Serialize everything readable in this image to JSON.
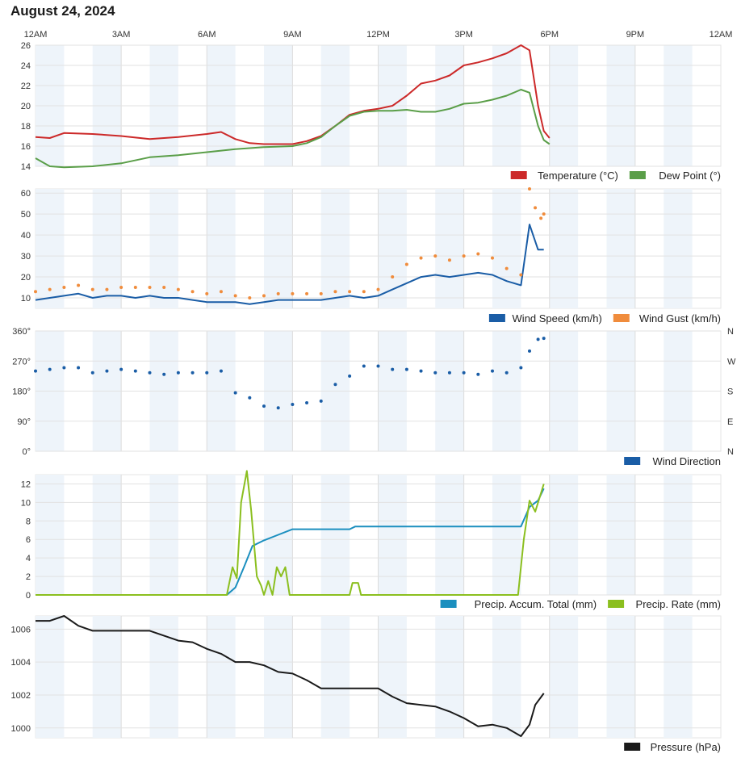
{
  "page": {
    "title": "August 24, 2024"
  },
  "time_axis": {
    "labels": [
      "12AM",
      "3AM",
      "6AM",
      "9AM",
      "12PM",
      "3PM",
      "6PM",
      "9PM",
      "12AM"
    ],
    "hours": [
      0,
      3,
      6,
      9,
      12,
      15,
      18,
      21,
      24
    ]
  },
  "chart_data": [
    {
      "type": "line",
      "xunit": "hours since midnight",
      "ylim": [
        14,
        26
      ],
      "yticks": [
        14,
        16,
        18,
        20,
        22,
        24,
        26
      ],
      "legend_position": "bottom-right",
      "series": [
        {
          "name": "Temperature (°C)",
          "color": "#cc2929",
          "points": [
            [
              0,
              16.9
            ],
            [
              0.5,
              16.8
            ],
            [
              1,
              17.3
            ],
            [
              2,
              17.2
            ],
            [
              3,
              17.0
            ],
            [
              4,
              16.7
            ],
            [
              5,
              16.9
            ],
            [
              6,
              17.2
            ],
            [
              6.5,
              17.4
            ],
            [
              7,
              16.7
            ],
            [
              7.5,
              16.3
            ],
            [
              8,
              16.2
            ],
            [
              9,
              16.2
            ],
            [
              9.5,
              16.5
            ],
            [
              10,
              17.0
            ],
            [
              10.5,
              18.0
            ],
            [
              11,
              19.1
            ],
            [
              11.5,
              19.5
            ],
            [
              12,
              19.7
            ],
            [
              12.5,
              20.0
            ],
            [
              13,
              21.0
            ],
            [
              13.5,
              22.2
            ],
            [
              14,
              22.5
            ],
            [
              14.5,
              23.0
            ],
            [
              15,
              24.0
            ],
            [
              15.5,
              24.3
            ],
            [
              16,
              24.7
            ],
            [
              16.5,
              25.2
            ],
            [
              17,
              26.0
            ],
            [
              17.3,
              25.5
            ],
            [
              17.6,
              20.0
            ],
            [
              17.8,
              17.5
            ],
            [
              18,
              16.8
            ]
          ]
        },
        {
          "name": "Dew Point (°)",
          "color": "#5a9e48",
          "points": [
            [
              0,
              14.8
            ],
            [
              0.5,
              14.0
            ],
            [
              1,
              13.9
            ],
            [
              2,
              14.0
            ],
            [
              3,
              14.3
            ],
            [
              4,
              14.9
            ],
            [
              5,
              15.1
            ],
            [
              6,
              15.4
            ],
            [
              7,
              15.7
            ],
            [
              8,
              15.9
            ],
            [
              9,
              16.0
            ],
            [
              9.5,
              16.3
            ],
            [
              10,
              16.9
            ],
            [
              10.5,
              18.0
            ],
            [
              11,
              19.0
            ],
            [
              11.5,
              19.4
            ],
            [
              12,
              19.5
            ],
            [
              12.5,
              19.5
            ],
            [
              13,
              19.6
            ],
            [
              13.5,
              19.4
            ],
            [
              14,
              19.4
            ],
            [
              14.5,
              19.7
            ],
            [
              15,
              20.2
            ],
            [
              15.5,
              20.3
            ],
            [
              16,
              20.6
            ],
            [
              16.5,
              21.0
            ],
            [
              17,
              21.6
            ],
            [
              17.3,
              21.3
            ],
            [
              17.6,
              18.0
            ],
            [
              17.8,
              16.6
            ],
            [
              18,
              16.2
            ]
          ]
        }
      ]
    },
    {
      "type": "line+scatter",
      "xunit": "hours since midnight",
      "ylim": [
        5,
        62
      ],
      "yticks": [
        10,
        20,
        30,
        40,
        50,
        60
      ],
      "legend_position": "bottom-right",
      "series": [
        {
          "name": "Wind Speed (km/h)",
          "color": "#1a5da6",
          "kind": "line",
          "points": [
            [
              0,
              9
            ],
            [
              0.5,
              10
            ],
            [
              1,
              11
            ],
            [
              1.5,
              12
            ],
            [
              2,
              10
            ],
            [
              2.5,
              11
            ],
            [
              3,
              11
            ],
            [
              3.5,
              10
            ],
            [
              4,
              11
            ],
            [
              4.5,
              10
            ],
            [
              5,
              10
            ],
            [
              5.5,
              9
            ],
            [
              6,
              8
            ],
            [
              6.5,
              8
            ],
            [
              7,
              8
            ],
            [
              7.5,
              7
            ],
            [
              8,
              8
            ],
            [
              8.5,
              9
            ],
            [
              9,
              9
            ],
            [
              9.5,
              9
            ],
            [
              10,
              9
            ],
            [
              10.5,
              10
            ],
            [
              11,
              11
            ],
            [
              11.5,
              10
            ],
            [
              12,
              11
            ],
            [
              12.5,
              14
            ],
            [
              13,
              17
            ],
            [
              13.5,
              20
            ],
            [
              14,
              21
            ],
            [
              14.5,
              20
            ],
            [
              15,
              21
            ],
            [
              15.5,
              22
            ],
            [
              16,
              21
            ],
            [
              16.5,
              18
            ],
            [
              17,
              16
            ],
            [
              17.3,
              45
            ],
            [
              17.6,
              33
            ],
            [
              17.8,
              33
            ]
          ]
        },
        {
          "name": "Wind Gust (km/h)",
          "color": "#f08c3c",
          "kind": "dots",
          "points": [
            [
              0,
              13
            ],
            [
              0.5,
              14
            ],
            [
              1,
              15
            ],
            [
              1.5,
              16
            ],
            [
              2,
              14
            ],
            [
              2.5,
              14
            ],
            [
              3,
              15
            ],
            [
              3.5,
              15
            ],
            [
              4,
              15
            ],
            [
              4.5,
              15
            ],
            [
              5,
              14
            ],
            [
              5.5,
              13
            ],
            [
              6,
              12
            ],
            [
              6.5,
              13
            ],
            [
              7,
              11
            ],
            [
              7.5,
              10
            ],
            [
              8,
              11
            ],
            [
              8.5,
              12
            ],
            [
              9,
              12
            ],
            [
              9.5,
              12
            ],
            [
              10,
              12
            ],
            [
              10.5,
              13
            ],
            [
              11,
              13
            ],
            [
              11.5,
              13
            ],
            [
              12,
              14
            ],
            [
              12.5,
              20
            ],
            [
              13,
              26
            ],
            [
              13.5,
              29
            ],
            [
              14,
              30
            ],
            [
              14.5,
              28
            ],
            [
              15,
              30
            ],
            [
              15.5,
              31
            ],
            [
              16,
              29
            ],
            [
              16.5,
              24
            ],
            [
              17,
              21
            ],
            [
              17.3,
              62
            ],
            [
              17.5,
              53
            ],
            [
              17.7,
              48
            ],
            [
              17.8,
              50
            ]
          ]
        }
      ]
    },
    {
      "type": "scatter",
      "xunit": "hours since midnight",
      "ylim": [
        0,
        360
      ],
      "yticks_left": [
        "0°",
        "90°",
        "180°",
        "270°",
        "360°"
      ],
      "yticks_right": [
        "N",
        "E",
        "S",
        "W",
        "N"
      ],
      "legend_position": "bottom-right",
      "series": [
        {
          "name": "Wind Direction",
          "color": "#1a5da6",
          "points": [
            [
              0,
              240
            ],
            [
              0.5,
              245
            ],
            [
              1,
              250
            ],
            [
              1.5,
              250
            ],
            [
              2,
              235
            ],
            [
              2.5,
              240
            ],
            [
              3,
              245
            ],
            [
              3.5,
              240
            ],
            [
              4,
              235
            ],
            [
              4.5,
              230
            ],
            [
              5,
              235
            ],
            [
              5.5,
              235
            ],
            [
              6,
              235
            ],
            [
              6.5,
              240
            ],
            [
              7,
              175
            ],
            [
              7.5,
              160
            ],
            [
              8,
              135
            ],
            [
              8.5,
              130
            ],
            [
              9,
              140
            ],
            [
              9.5,
              145
            ],
            [
              10,
              150
            ],
            [
              10.5,
              200
            ],
            [
              11,
              225
            ],
            [
              11.5,
              255
            ],
            [
              12,
              255
            ],
            [
              12.5,
              245
            ],
            [
              13,
              245
            ],
            [
              13.5,
              240
            ],
            [
              14,
              235
            ],
            [
              14.5,
              235
            ],
            [
              15,
              235
            ],
            [
              15.5,
              230
            ],
            [
              16,
              240
            ],
            [
              16.5,
              235
            ],
            [
              17,
              250
            ],
            [
              17.3,
              300
            ],
            [
              17.6,
              335
            ],
            [
              17.8,
              338
            ]
          ]
        }
      ]
    },
    {
      "type": "line",
      "xunit": "hours since midnight",
      "ylim": [
        0,
        13
      ],
      "yticks": [
        0,
        2,
        4,
        6,
        8,
        10,
        12
      ],
      "legend_position": "bottom-right",
      "series": [
        {
          "name": "Precip. Accum. Total (mm)",
          "color": "#1b8fbf",
          "points": [
            [
              0,
              0
            ],
            [
              6.7,
              0
            ],
            [
              7.0,
              0.8
            ],
            [
              7.3,
              3.0
            ],
            [
              7.6,
              5.3
            ],
            [
              8.0,
              5.9
            ],
            [
              8.5,
              6.5
            ],
            [
              9.0,
              7.1
            ],
            [
              11.0,
              7.1
            ],
            [
              11.2,
              7.4
            ],
            [
              17.0,
              7.4
            ],
            [
              17.3,
              9.5
            ],
            [
              17.6,
              10.2
            ],
            [
              17.8,
              11.5
            ]
          ]
        },
        {
          "name": "Precip. Rate (mm)",
          "color": "#8bbf1f",
          "points": [
            [
              0,
              0
            ],
            [
              6.7,
              0
            ],
            [
              6.9,
              3.0
            ],
            [
              7.05,
              1.8
            ],
            [
              7.2,
              10.0
            ],
            [
              7.4,
              13.4
            ],
            [
              7.55,
              9.2
            ],
            [
              7.75,
              2.0
            ],
            [
              7.9,
              1.0
            ],
            [
              8.0,
              0
            ],
            [
              8.15,
              1.5
            ],
            [
              8.3,
              0
            ],
            [
              8.45,
              3.0
            ],
            [
              8.6,
              2.0
            ],
            [
              8.75,
              3.0
            ],
            [
              8.9,
              0
            ],
            [
              11.0,
              0
            ],
            [
              11.1,
              1.3
            ],
            [
              11.3,
              1.3
            ],
            [
              11.4,
              0
            ],
            [
              16.9,
              0
            ],
            [
              17.1,
              6.0
            ],
            [
              17.3,
              10.2
            ],
            [
              17.5,
              9.0
            ],
            [
              17.8,
              12.0
            ]
          ]
        }
      ]
    },
    {
      "type": "line",
      "xunit": "hours since midnight",
      "ylim": [
        999.4,
        1006.8
      ],
      "yticks": [
        1000,
        1002,
        1004,
        1006
      ],
      "legend_position": "bottom-right",
      "series": [
        {
          "name": "Pressure (hPa)",
          "color": "#1a1a1a",
          "points": [
            [
              0,
              1006.5
            ],
            [
              0.5,
              1006.5
            ],
            [
              1,
              1006.8
            ],
            [
              1.5,
              1006.2
            ],
            [
              2,
              1005.9
            ],
            [
              3,
              1005.9
            ],
            [
              4,
              1005.9
            ],
            [
              5,
              1005.3
            ],
            [
              5.5,
              1005.2
            ],
            [
              6,
              1004.8
            ],
            [
              6.5,
              1004.5
            ],
            [
              7,
              1004.0
            ],
            [
              7.5,
              1004.0
            ],
            [
              8,
              1003.8
            ],
            [
              8.5,
              1003.4
            ],
            [
              9,
              1003.3
            ],
            [
              9.5,
              1002.9
            ],
            [
              10,
              1002.4
            ],
            [
              11,
              1002.4
            ],
            [
              12,
              1002.4
            ],
            [
              12.5,
              1001.9
            ],
            [
              13,
              1001.5
            ],
            [
              14,
              1001.3
            ],
            [
              14.5,
              1001.0
            ],
            [
              15,
              1000.6
            ],
            [
              15.5,
              1000.1
            ],
            [
              16,
              1000.2
            ],
            [
              16.5,
              1000.0
            ],
            [
              17,
              999.5
            ],
            [
              17.3,
              1000.2
            ],
            [
              17.5,
              1001.4
            ],
            [
              17.8,
              1002.1
            ]
          ]
        }
      ]
    }
  ]
}
